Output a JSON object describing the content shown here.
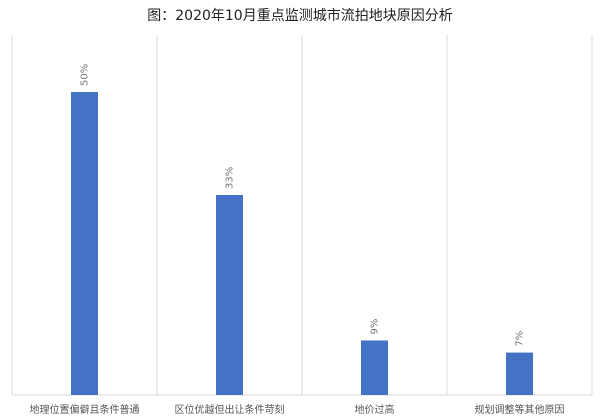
{
  "chart_data": {
    "type": "bar",
    "title": "图：2020年10月重点监测城市流拍地块原因分析",
    "categories": [
      "地理位置偏僻且条件普通",
      "区位优越但出让条件苛刻",
      "地价过高",
      "规划调整等其他原因"
    ],
    "values": [
      50,
      33,
      9,
      7
    ],
    "value_labels": [
      "50%",
      "33%",
      "9%",
      "7%"
    ],
    "color": "#4472c4"
  }
}
